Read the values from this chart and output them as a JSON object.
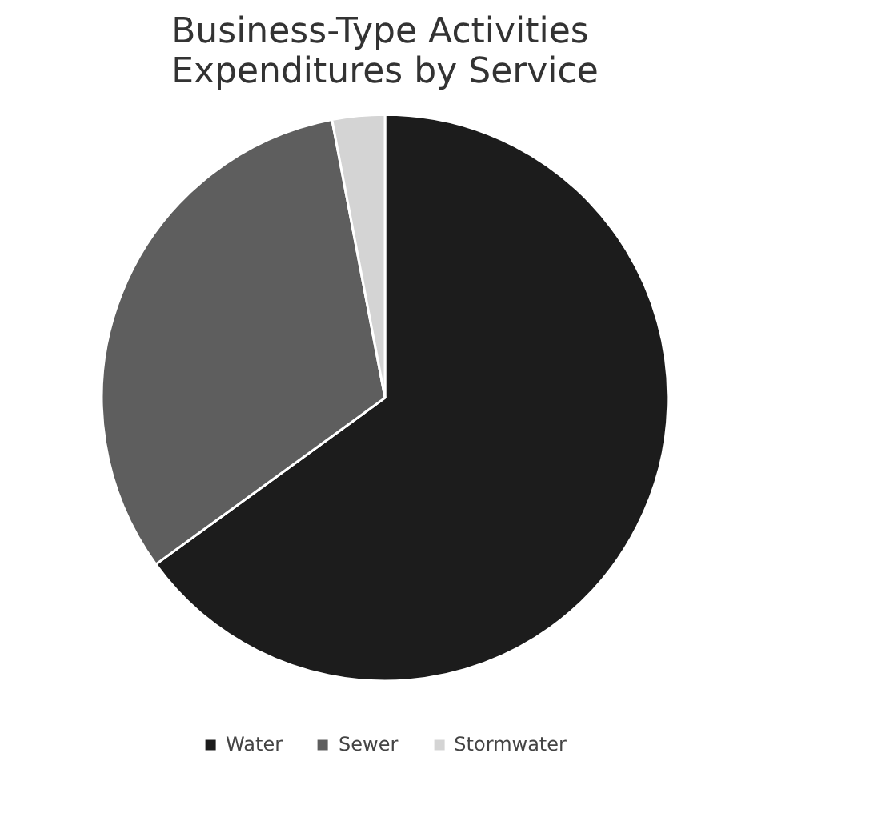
{
  "chart_data": {
    "type": "pie",
    "title": "Business-Type Activities Expenditures by Service",
    "categories": [
      "Water",
      "Sewer",
      "Stormwater"
    ],
    "values": [
      65,
      32,
      3
    ],
    "colors": [
      "#1c1c1c",
      "#5e5e5e",
      "#d4d4d4"
    ],
    "legend": "bottom"
  }
}
